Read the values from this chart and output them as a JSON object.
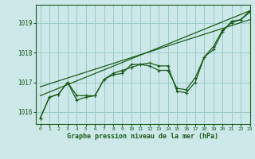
{
  "title": "Graphe pression niveau de la mer (hPa)",
  "bg_color": "#cce8e8",
  "grid_color": "#99cccc",
  "line_color": "#1a5c1a",
  "xlim": [
    -0.5,
    23
  ],
  "ylim": [
    1015.6,
    1019.6
  ],
  "yticks": [
    1016,
    1017,
    1018,
    1019
  ],
  "xticks": [
    0,
    1,
    2,
    3,
    4,
    5,
    6,
    7,
    8,
    9,
    10,
    11,
    12,
    13,
    14,
    15,
    16,
    17,
    18,
    19,
    20,
    21,
    22,
    23
  ],
  "series_main": [
    1015.8,
    1016.5,
    1016.6,
    1017.0,
    1016.55,
    1016.55,
    1016.55,
    1017.1,
    1017.25,
    1017.3,
    1017.6,
    1017.6,
    1017.65,
    1017.55,
    1017.55,
    1016.7,
    1016.65,
    1017.0,
    1017.85,
    1018.1,
    1018.7,
    1019.05,
    1019.1,
    1019.4
  ],
  "series2": [
    1015.8,
    1016.5,
    1016.6,
    1017.0,
    1016.4,
    1016.5,
    1016.55,
    1017.1,
    1017.3,
    1017.4,
    1017.5,
    1017.6,
    1017.55,
    1017.4,
    1017.4,
    1016.8,
    1016.75,
    1017.15,
    1017.85,
    1018.2,
    1018.75,
    1019.0,
    1019.1,
    1019.35
  ],
  "trend1_x": [
    0,
    23
  ],
  "trend1_y": [
    1016.55,
    1019.4
  ],
  "trend2_x": [
    0,
    23
  ],
  "trend2_y": [
    1016.85,
    1019.1
  ]
}
